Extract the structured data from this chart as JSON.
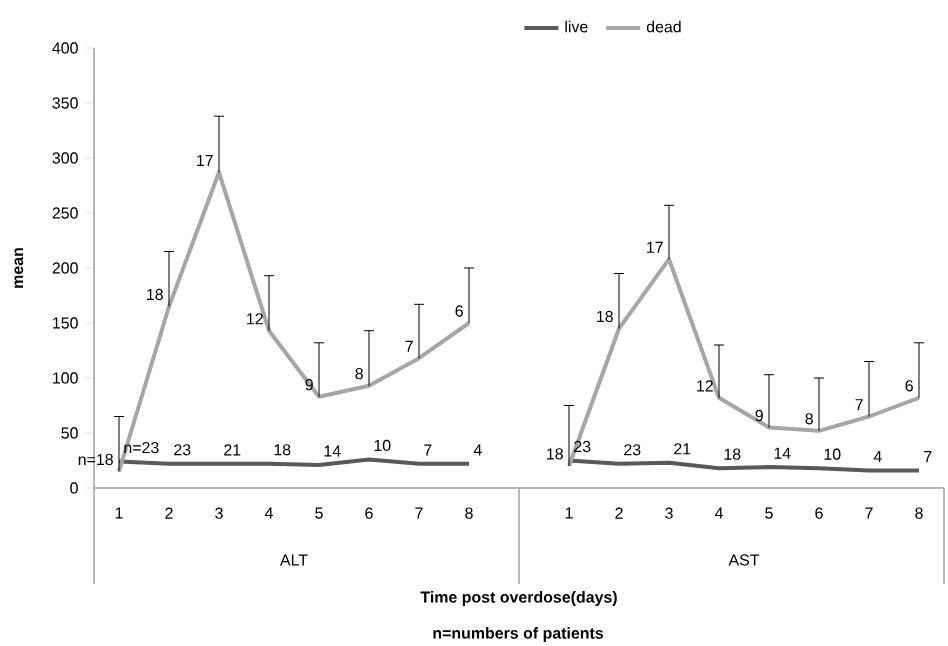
{
  "chart_data": {
    "type": "line",
    "ylabel": "mean",
    "xlabel": "Time post overdose(days)",
    "annotations": [
      "ALT",
      "AST",
      "n=numbers of patients",
      "n=23",
      "23",
      "21",
      "18",
      "14",
      "10",
      "7",
      "4",
      "23",
      "23",
      "21",
      "18",
      "14",
      "10",
      "4",
      "7",
      "n=18",
      "18",
      "17",
      "12",
      "9",
      "8",
      "7",
      "6",
      "18",
      "18",
      "17",
      "12",
      "9",
      "8",
      "7",
      "6"
    ],
    "categories": [
      "1",
      "2",
      "3",
      "4",
      "5",
      "6",
      "7",
      "8",
      "1",
      "2",
      "3",
      "4",
      "5",
      "6",
      "7",
      "8"
    ],
    "series": [
      {
        "name": "live",
        "color": "#595959",
        "values": [
          24,
          22,
          22,
          22,
          21,
          26,
          22,
          22,
          25,
          22,
          23,
          18,
          19,
          18,
          16,
          16
        ]
      },
      {
        "name": "dead",
        "color": "#a6a6a6",
        "values": [
          15,
          165,
          287,
          143,
          83,
          93,
          118,
          150,
          20,
          145,
          208,
          82,
          55,
          52,
          65,
          82
        ],
        "errors": [
          [
            15,
            65
          ],
          [
            165,
            215
          ],
          [
            287,
            338
          ],
          [
            143,
            193
          ],
          [
            83,
            132
          ],
          [
            93,
            143
          ],
          [
            118,
            167
          ],
          [
            150,
            200
          ],
          [
            20,
            75
          ],
          [
            145,
            195
          ],
          [
            208,
            257
          ],
          [
            82,
            130
          ],
          [
            55,
            103
          ],
          [
            52,
            100
          ],
          [
            65,
            115
          ],
          [
            82,
            132
          ]
        ]
      }
    ],
    "ylim": [
      0,
      400
    ],
    "yticks": [
      0,
      50,
      100,
      150,
      200,
      250,
      300,
      350,
      400
    ],
    "legend": "top",
    "marker": "none",
    "line_style": "solid",
    "grid": false
  }
}
